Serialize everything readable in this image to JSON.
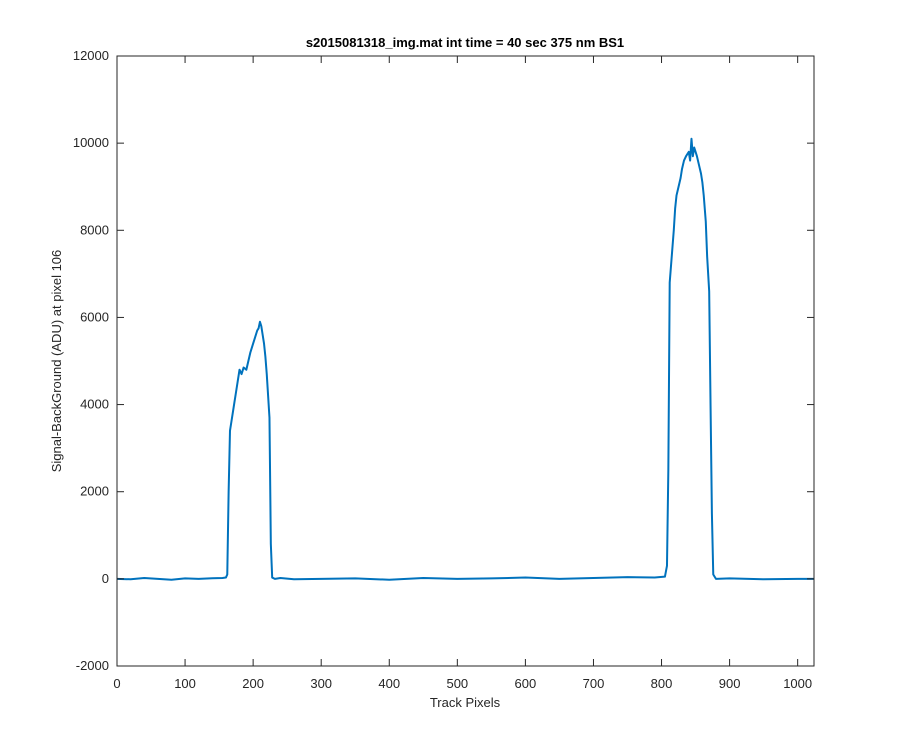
{
  "chart_data": {
    "type": "line",
    "title": "s2015081318_img.mat int time = 40 sec  375 nm BS1",
    "xlabel": "Track Pixels",
    "ylabel": "Signal-BackGround (ADU) at pixel 106",
    "xlim": [
      0,
      1024
    ],
    "ylim": [
      -2000,
      12000
    ],
    "xticks": [
      0,
      100,
      200,
      300,
      400,
      500,
      600,
      700,
      800,
      900,
      1000
    ],
    "yticks": [
      -2000,
      0,
      2000,
      4000,
      6000,
      8000,
      10000,
      12000
    ],
    "grid": false,
    "series": [
      {
        "color": "#0072bd",
        "x": [
          0,
          20,
          40,
          60,
          80,
          100,
          120,
          140,
          155,
          160,
          162,
          164,
          166,
          168,
          170,
          172,
          175,
          178,
          180,
          183,
          186,
          190,
          193,
          196,
          200,
          203,
          206,
          208,
          210,
          212,
          214,
          216,
          218,
          220,
          222,
          224,
          226,
          228,
          232,
          240,
          260,
          300,
          350,
          400,
          450,
          500,
          550,
          600,
          650,
          700,
          750,
          790,
          805,
          808,
          810,
          812,
          815,
          818,
          820,
          822,
          825,
          828,
          830,
          833,
          836,
          840,
          842,
          844,
          846,
          848,
          850,
          852,
          855,
          858,
          860,
          862,
          865,
          867,
          870,
          872,
          874,
          876,
          880,
          900,
          950,
          1000,
          1024
        ],
        "y": [
          0,
          -10,
          20,
          0,
          -20,
          10,
          0,
          15,
          20,
          30,
          100,
          2000,
          3400,
          3600,
          3800,
          4000,
          4300,
          4600,
          4800,
          4700,
          4850,
          4800,
          5000,
          5200,
          5400,
          5550,
          5700,
          5750,
          5900,
          5800,
          5600,
          5400,
          5100,
          4700,
          4200,
          3700,
          800,
          30,
          0,
          20,
          -10,
          0,
          10,
          -20,
          20,
          0,
          10,
          30,
          0,
          20,
          40,
          30,
          50,
          300,
          2500,
          6800,
          7400,
          8000,
          8500,
          8800,
          9000,
          9200,
          9400,
          9600,
          9700,
          9800,
          9600,
          10100,
          9700,
          9900,
          9800,
          9700,
          9500,
          9300,
          9100,
          8800,
          8200,
          7400,
          6600,
          4000,
          1500,
          100,
          0,
          10,
          -10,
          0,
          0
        ]
      }
    ]
  }
}
